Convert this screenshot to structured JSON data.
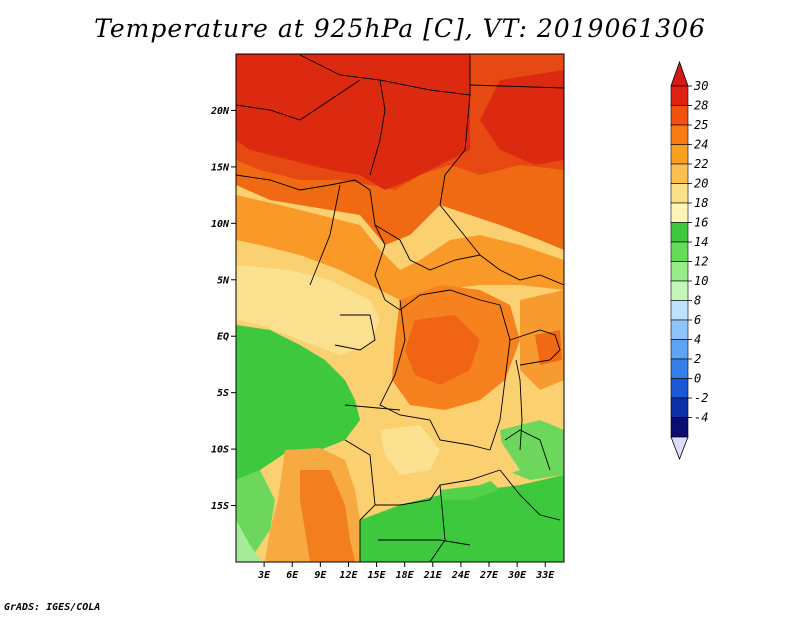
{
  "title": "Temperature at 925hPa [C], VT: 2019061306",
  "footer": "GrADS: IGES/COLA",
  "map": {
    "lon_range": [
      0,
      35
    ],
    "lat_range": [
      -20,
      25
    ],
    "lat_ticks": [
      {
        "value": 20,
        "label": "20N"
      },
      {
        "value": 15,
        "label": "15N"
      },
      {
        "value": 10,
        "label": "10N"
      },
      {
        "value": 5,
        "label": "5N"
      },
      {
        "value": 0,
        "label": "EQ"
      },
      {
        "value": -5,
        "label": "5S"
      },
      {
        "value": -10,
        "label": "10S"
      },
      {
        "value": -15,
        "label": "15S"
      }
    ],
    "lon_ticks": [
      {
        "value": 3,
        "label": "3E"
      },
      {
        "value": 6,
        "label": "6E"
      },
      {
        "value": 9,
        "label": "9E"
      },
      {
        "value": 12,
        "label": "12E"
      },
      {
        "value": 15,
        "label": "15E"
      },
      {
        "value": 18,
        "label": "18E"
      },
      {
        "value": 21,
        "label": "21E"
      },
      {
        "value": 24,
        "label": "24E"
      },
      {
        "value": 27,
        "label": "27E"
      },
      {
        "value": 30,
        "label": "30E"
      },
      {
        "value": 33,
        "label": "33E"
      }
    ]
  },
  "colorbar": {
    "labels": [
      "30",
      "28",
      "25",
      "24",
      "22",
      "20",
      "18",
      "16",
      "14",
      "12",
      "10",
      "8",
      "6",
      "4",
      "2",
      "0",
      "-2",
      "-4"
    ],
    "colors": [
      "#e02010",
      "#f05010",
      "#f87a10",
      "#faa020",
      "#fbc050",
      "#fbe08a",
      "#fff5b8",
      "#3ec83e",
      "#66dd5a",
      "#96ec86",
      "#c4f6bc",
      "#bfe1fd",
      "#8fc4f8",
      "#5ea4f2",
      "#3580e8",
      "#1a58d6",
      "#0d2fa8",
      "#0a0e70"
    ],
    "top_arrow_color": "#d41a14",
    "bottom_arrow_color": "#dcdcfc"
  }
}
